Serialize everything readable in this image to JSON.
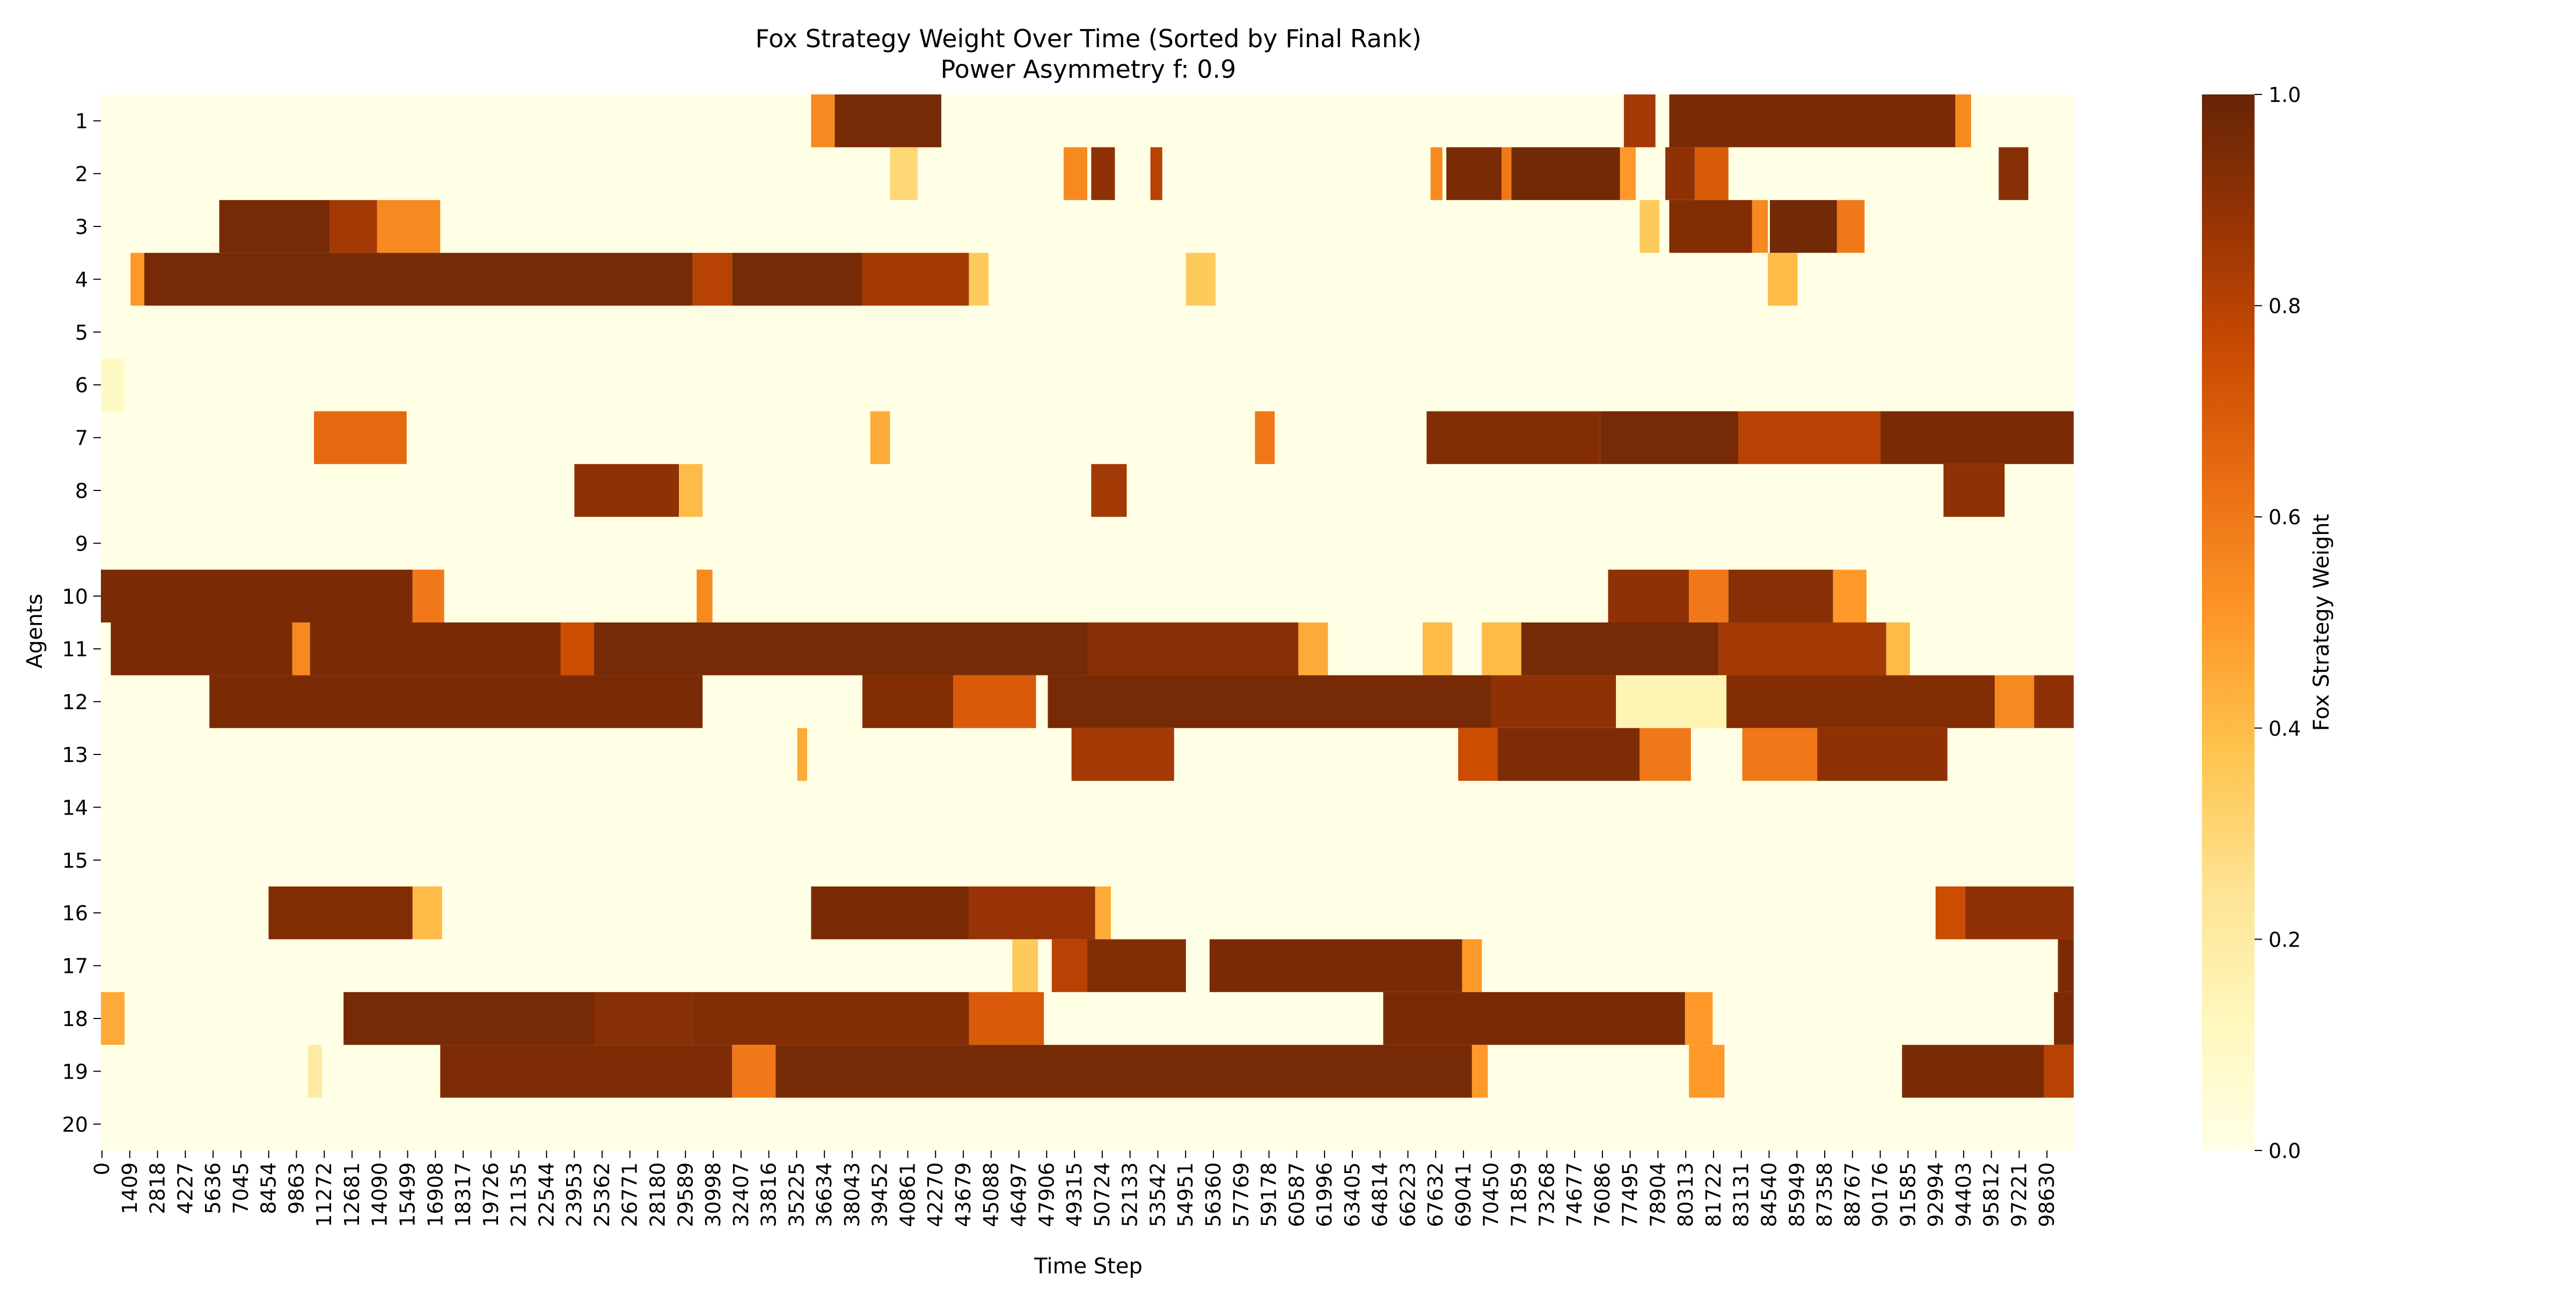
{
  "chart_data": {
    "type": "heatmap",
    "title": "Fox Strategy Weight Over Time (Sorted by Final Rank)",
    "subtitle": "Power Asymmetry f: 0.9",
    "xlabel": "Time Step",
    "ylabel": "Agents",
    "colorbar_label": "Fox Strategy Weight",
    "colorbar_ticks": [
      "0.0",
      "0.2",
      "0.4",
      "0.6",
      "0.8",
      "1.0"
    ],
    "vmin": 0.0,
    "vmax": 1.0,
    "colormap": [
      "#ffffe5",
      "#fff7bc",
      "#fee391",
      "#fec44f",
      "#fe9929",
      "#ec7014",
      "#cc4c02",
      "#993404",
      "#662506"
    ],
    "x_domain": [
      0,
      100000
    ],
    "x_ticks": [
      "0",
      "1409",
      "2818",
      "4227",
      "5636",
      "7045",
      "8454",
      "9863",
      "11272",
      "12681",
      "14090",
      "15499",
      "16908",
      "18317",
      "19726",
      "21135",
      "22544",
      "23953",
      "25362",
      "26771",
      "28180",
      "29589",
      "30998",
      "32407",
      "33816",
      "35225",
      "36634",
      "38043",
      "39452",
      "40861",
      "42270",
      "43679",
      "45088",
      "46497",
      "47906",
      "49315",
      "50724",
      "52133",
      "53542",
      "54951",
      "56360",
      "57769",
      "59178",
      "60587",
      "61996",
      "63405",
      "64814",
      "66223",
      "67632",
      "69041",
      "70450",
      "71859",
      "73268",
      "74677",
      "76086",
      "77495",
      "78904",
      "80313",
      "81722",
      "83131",
      "84540",
      "85949",
      "87358",
      "88767",
      "90176",
      "91585",
      "92994",
      "94403",
      "95812",
      "97221",
      "98630"
    ],
    "agents": [
      "1",
      "2",
      "3",
      "4",
      "5",
      "6",
      "7",
      "8",
      "9",
      "10",
      "11",
      "12",
      "13",
      "14",
      "15",
      "16",
      "17",
      "18",
      "19",
      "20"
    ],
    "rows": [
      {
        "agent": "1",
        "segments": [
          [
            36000,
            37200,
            0.55
          ],
          [
            37200,
            42600,
            0.96
          ],
          [
            77200,
            78800,
            0.85
          ],
          [
            79500,
            94000,
            0.95
          ],
          [
            94000,
            94800,
            0.55
          ]
        ]
      },
      {
        "agent": "2",
        "segments": [
          [
            40000,
            41400,
            0.3
          ],
          [
            48800,
            50000,
            0.55
          ],
          [
            50200,
            51400,
            0.9
          ],
          [
            53200,
            53800,
            0.8
          ],
          [
            67400,
            68000,
            0.55
          ],
          [
            68200,
            71000,
            0.95
          ],
          [
            71000,
            71500,
            0.6
          ],
          [
            71500,
            77000,
            0.97
          ],
          [
            77000,
            77800,
            0.5
          ],
          [
            79300,
            80800,
            0.9
          ],
          [
            80800,
            82500,
            0.7
          ],
          [
            96200,
            97700,
            0.92
          ]
        ]
      },
      {
        "agent": "3",
        "segments": [
          [
            6000,
            11600,
            0.96
          ],
          [
            11600,
            14000,
            0.85
          ],
          [
            14000,
            17200,
            0.55
          ],
          [
            78000,
            79000,
            0.35
          ],
          [
            79500,
            83700,
            0.93
          ],
          [
            83700,
            84500,
            0.55
          ],
          [
            84600,
            88000,
            0.97
          ],
          [
            88000,
            89400,
            0.6
          ]
        ]
      },
      {
        "agent": "4",
        "segments": [
          [
            1500,
            2200,
            0.5
          ],
          [
            2200,
            30000,
            0.96
          ],
          [
            30000,
            32000,
            0.8
          ],
          [
            32000,
            38600,
            0.96
          ],
          [
            38600,
            44000,
            0.85
          ],
          [
            44000,
            45000,
            0.35
          ],
          [
            55000,
            56500,
            0.35
          ],
          [
            84500,
            86000,
            0.4
          ]
        ]
      },
      {
        "agent": "5",
        "segments": []
      },
      {
        "agent": "6",
        "segments": [
          [
            0,
            1200,
            0.1
          ]
        ]
      },
      {
        "agent": "7",
        "segments": [
          [
            10800,
            15500,
            0.65
          ],
          [
            39000,
            40000,
            0.45
          ],
          [
            58500,
            59500,
            0.6
          ],
          [
            67200,
            76000,
            0.93
          ],
          [
            76000,
            83000,
            0.96
          ],
          [
            83000,
            90200,
            0.8
          ],
          [
            90200,
            100000,
            0.95
          ]
        ]
      },
      {
        "agent": "8",
        "segments": [
          [
            24000,
            29300,
            0.9
          ],
          [
            29300,
            30500,
            0.4
          ],
          [
            50200,
            52000,
            0.85
          ],
          [
            93400,
            96500,
            0.9
          ]
        ]
      },
      {
        "agent": "9",
        "segments": []
      },
      {
        "agent": "10",
        "segments": [
          [
            0,
            15800,
            0.95
          ],
          [
            15800,
            17400,
            0.6
          ],
          [
            30200,
            31000,
            0.55
          ],
          [
            76400,
            80500,
            0.9
          ],
          [
            80500,
            82500,
            0.6
          ],
          [
            82500,
            87800,
            0.92
          ],
          [
            87800,
            89500,
            0.5
          ]
        ]
      },
      {
        "agent": "11",
        "segments": [
          [
            500,
            9700,
            0.95
          ],
          [
            9700,
            10600,
            0.55
          ],
          [
            10600,
            23300,
            0.95
          ],
          [
            23300,
            25000,
            0.75
          ],
          [
            25000,
            50000,
            0.96
          ],
          [
            50000,
            60700,
            0.92
          ],
          [
            60700,
            62200,
            0.45
          ],
          [
            67000,
            68500,
            0.4
          ],
          [
            70000,
            72000,
            0.4
          ],
          [
            72000,
            82000,
            0.96
          ],
          [
            82000,
            90500,
            0.85
          ],
          [
            90500,
            91700,
            0.4
          ]
        ]
      },
      {
        "agent": "12",
        "segments": [
          [
            5500,
            30500,
            0.95
          ],
          [
            38600,
            43200,
            0.93
          ],
          [
            43200,
            47400,
            0.7
          ],
          [
            48000,
            70500,
            0.96
          ],
          [
            70500,
            76800,
            0.9
          ],
          [
            76800,
            82400,
            0.15
          ],
          [
            82400,
            96000,
            0.93
          ],
          [
            96000,
            98000,
            0.55
          ],
          [
            98000,
            100000,
            0.9
          ]
        ]
      },
      {
        "agent": "13",
        "segments": [
          [
            35300,
            35800,
            0.45
          ],
          [
            49200,
            54400,
            0.85
          ],
          [
            68800,
            70800,
            0.75
          ],
          [
            70800,
            78000,
            0.94
          ],
          [
            78000,
            80600,
            0.6
          ],
          [
            83200,
            87000,
            0.6
          ],
          [
            87000,
            93600,
            0.9
          ]
        ]
      },
      {
        "agent": "14",
        "segments": []
      },
      {
        "agent": "15",
        "segments": []
      },
      {
        "agent": "16",
        "segments": [
          [
            8500,
            15800,
            0.93
          ],
          [
            15800,
            17300,
            0.4
          ],
          [
            36000,
            44000,
            0.95
          ],
          [
            44000,
            50400,
            0.88
          ],
          [
            50400,
            51200,
            0.45
          ],
          [
            93000,
            94500,
            0.75
          ],
          [
            94500,
            100000,
            0.9
          ]
        ]
      },
      {
        "agent": "17",
        "segments": [
          [
            46200,
            47500,
            0.35
          ],
          [
            48200,
            50000,
            0.8
          ],
          [
            50000,
            55000,
            0.93
          ],
          [
            56200,
            69000,
            0.95
          ],
          [
            69000,
            70000,
            0.5
          ],
          [
            99200,
            100000,
            0.95
          ]
        ]
      },
      {
        "agent": "18",
        "segments": [
          [
            0,
            1200,
            0.45
          ],
          [
            12300,
            25000,
            0.96
          ],
          [
            25000,
            30000,
            0.92
          ],
          [
            30000,
            44000,
            0.93
          ],
          [
            44000,
            47800,
            0.7
          ],
          [
            65000,
            80300,
            0.95
          ],
          [
            80300,
            81700,
            0.5
          ],
          [
            99000,
            100000,
            0.95
          ]
        ]
      },
      {
        "agent": "19",
        "segments": [
          [
            10500,
            11200,
            0.2
          ],
          [
            17200,
            32000,
            0.94
          ],
          [
            32000,
            34200,
            0.6
          ],
          [
            34200,
            69500,
            0.96
          ],
          [
            69500,
            70300,
            0.5
          ],
          [
            80500,
            82300,
            0.5
          ],
          [
            91300,
            98500,
            0.95
          ],
          [
            98500,
            100000,
            0.8
          ]
        ]
      },
      {
        "agent": "20",
        "segments": []
      }
    ]
  }
}
